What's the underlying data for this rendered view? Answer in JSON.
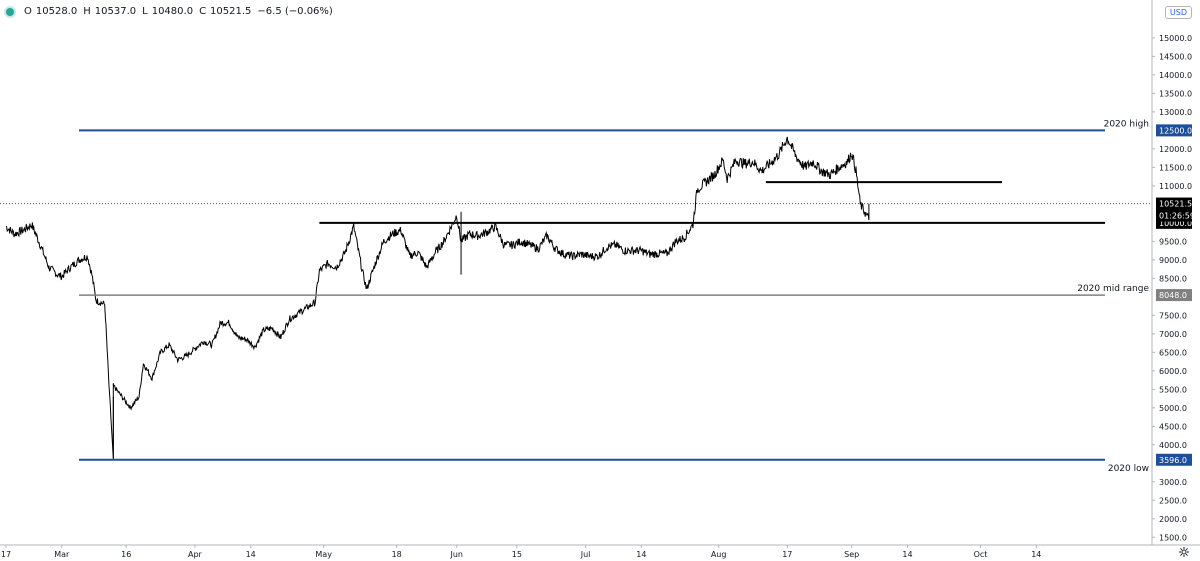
{
  "ohlc": {
    "open_label": "O",
    "open": "10528.0",
    "high_label": "H",
    "high": "10537.0",
    "low_label": "L",
    "low": "10480.0",
    "close_label": "C",
    "close": "10521.5",
    "change": "−6.5 (−0.06%)"
  },
  "currency": "USD",
  "countdown": "01:26:59",
  "colors": {
    "accent": "#2962ff",
    "range_line": "#1e4f9c",
    "mid_line": "#808080",
    "level_line": "#000000",
    "axis_text": "#131722",
    "status_dot": "#26a69a"
  },
  "icons": {
    "settings": "gear-icon",
    "status": "status-dot-icon"
  },
  "chart_data": {
    "type": "line",
    "series_style": "candlestick (rendered as price path)",
    "y_axis": {
      "position": "right",
      "range": [
        1400,
        15700
      ],
      "tick_labels": [
        "15000.0",
        "14500.0",
        "14000.0",
        "13500.0",
        "13000.0",
        "12500.0",
        "12000.0",
        "11500.0",
        "11000.0",
        "10500.0",
        "10000.0",
        "9500.0",
        "9000.0",
        "8500.0",
        "8000.0",
        "7500.0",
        "7000.0",
        "6500.0",
        "6000.0",
        "5500.0",
        "5000.0",
        "4500.0",
        "4000.0",
        "3500.0",
        "3000.0",
        "2500.0",
        "2000.0",
        "1500.0"
      ]
    },
    "x_axis": {
      "range": [
        "2020-02-17",
        "2020-10-30"
      ],
      "tick_labels": [
        {
          "label": "17",
          "date": "2020-02-17"
        },
        {
          "label": "Mar",
          "date": "2020-03-01"
        },
        {
          "label": "16",
          "date": "2020-03-16"
        },
        {
          "label": "Apr",
          "date": "2020-04-01"
        },
        {
          "label": "14",
          "date": "2020-04-14"
        },
        {
          "label": "May",
          "date": "2020-05-01"
        },
        {
          "label": "18",
          "date": "2020-05-18"
        },
        {
          "label": "Jun",
          "date": "2020-06-01"
        },
        {
          "label": "15",
          "date": "2020-06-15"
        },
        {
          "label": "Jul",
          "date": "2020-07-01"
        },
        {
          "label": "14",
          "date": "2020-07-14"
        },
        {
          "label": "Aug",
          "date": "2020-08-01"
        },
        {
          "label": "17",
          "date": "2020-08-17"
        },
        {
          "label": "Sep",
          "date": "2020-09-01"
        },
        {
          "label": "14",
          "date": "2020-09-14"
        },
        {
          "label": "Oct",
          "date": "2020-10-01"
        },
        {
          "label": "14",
          "date": "2020-10-14"
        }
      ]
    },
    "price_path": [
      [
        "2020-02-17",
        9900
      ],
      [
        "2020-02-19",
        9700
      ],
      [
        "2020-02-21",
        9800
      ],
      [
        "2020-02-23",
        9950
      ],
      [
        "2020-02-25",
        9400
      ],
      [
        "2020-02-27",
        8800
      ],
      [
        "2020-02-29",
        8600
      ],
      [
        "2020-03-01",
        8550
      ],
      [
        "2020-03-03",
        8800
      ],
      [
        "2020-03-05",
        9000
      ],
      [
        "2020-03-07",
        9100
      ],
      [
        "2020-03-08",
        8600
      ],
      [
        "2020-03-09",
        7900
      ],
      [
        "2020-03-11",
        7800
      ],
      [
        "2020-03-12",
        5600
      ],
      [
        "2020-03-13",
        3600
      ],
      [
        "2020-03-13",
        5600
      ],
      [
        "2020-03-15",
        5300
      ],
      [
        "2020-03-17",
        5000
      ],
      [
        "2020-03-19",
        5300
      ],
      [
        "2020-03-20",
        6200
      ],
      [
        "2020-03-22",
        5800
      ],
      [
        "2020-03-24",
        6500
      ],
      [
        "2020-03-26",
        6700
      ],
      [
        "2020-03-28",
        6300
      ],
      [
        "2020-03-30",
        6400
      ],
      [
        "2020-04-01",
        6600
      ],
      [
        "2020-04-03",
        6800
      ],
      [
        "2020-04-05",
        6700
      ],
      [
        "2020-04-07",
        7300
      ],
      [
        "2020-04-09",
        7300
      ],
      [
        "2020-04-11",
        6900
      ],
      [
        "2020-04-13",
        6850
      ],
      [
        "2020-04-15",
        6650
      ],
      [
        "2020-04-17",
        7100
      ],
      [
        "2020-04-19",
        7150
      ],
      [
        "2020-04-21",
        6900
      ],
      [
        "2020-04-23",
        7400
      ],
      [
        "2020-04-25",
        7550
      ],
      [
        "2020-04-27",
        7700
      ],
      [
        "2020-04-29",
        7850
      ],
      [
        "2020-04-30",
        8700
      ],
      [
        "2020-05-02",
        8900
      ],
      [
        "2020-05-04",
        8800
      ],
      [
        "2020-05-06",
        9200
      ],
      [
        "2020-05-08",
        9900
      ],
      [
        "2020-05-10",
        8700
      ],
      [
        "2020-05-11",
        8200
      ],
      [
        "2020-05-13",
        8900
      ],
      [
        "2020-05-15",
        9500
      ],
      [
        "2020-05-17",
        9700
      ],
      [
        "2020-05-19",
        9800
      ],
      [
        "2020-05-21",
        9100
      ],
      [
        "2020-05-23",
        9200
      ],
      [
        "2020-05-25",
        8800
      ],
      [
        "2020-05-27",
        9200
      ],
      [
        "2020-05-29",
        9500
      ],
      [
        "2020-06-01",
        10200
      ],
      [
        "2020-06-02",
        9500
      ],
      [
        "2020-06-04",
        9700
      ],
      [
        "2020-06-06",
        9650
      ],
      [
        "2020-06-08",
        9750
      ],
      [
        "2020-06-10",
        9900
      ],
      [
        "2020-06-12",
        9400
      ],
      [
        "2020-06-14",
        9400
      ],
      [
        "2020-06-16",
        9500
      ],
      [
        "2020-06-18",
        9400
      ],
      [
        "2020-06-20",
        9300
      ],
      [
        "2020-06-22",
        9650
      ],
      [
        "2020-06-24",
        9300
      ],
      [
        "2020-06-26",
        9150
      ],
      [
        "2020-06-28",
        9100
      ],
      [
        "2020-06-30",
        9150
      ],
      [
        "2020-07-02",
        9100
      ],
      [
        "2020-07-04",
        9100
      ],
      [
        "2020-07-06",
        9350
      ],
      [
        "2020-07-08",
        9400
      ],
      [
        "2020-07-10",
        9250
      ],
      [
        "2020-07-12",
        9250
      ],
      [
        "2020-07-14",
        9250
      ],
      [
        "2020-07-16",
        9150
      ],
      [
        "2020-07-18",
        9170
      ],
      [
        "2020-07-20",
        9170
      ],
      [
        "2020-07-22",
        9500
      ],
      [
        "2020-07-24",
        9600
      ],
      [
        "2020-07-26",
        9950
      ],
      [
        "2020-07-27",
        10900
      ],
      [
        "2020-07-29",
        11100
      ],
      [
        "2020-07-31",
        11300
      ],
      [
        "2020-08-02",
        11700
      ],
      [
        "2020-08-03",
        11200
      ],
      [
        "2020-08-05",
        11700
      ],
      [
        "2020-08-07",
        11600
      ],
      [
        "2020-08-09",
        11650
      ],
      [
        "2020-08-11",
        11400
      ],
      [
        "2020-08-13",
        11600
      ],
      [
        "2020-08-15",
        11850
      ],
      [
        "2020-08-17",
        12300
      ],
      [
        "2020-08-19",
        11800
      ],
      [
        "2020-08-21",
        11500
      ],
      [
        "2020-08-23",
        11650
      ],
      [
        "2020-08-25",
        11400
      ],
      [
        "2020-08-27",
        11300
      ],
      [
        "2020-08-29",
        11500
      ],
      [
        "2020-08-31",
        11650
      ],
      [
        "2020-09-01",
        11900
      ],
      [
        "2020-09-02",
        11400
      ],
      [
        "2020-09-03",
        10500
      ],
      [
        "2020-09-04",
        10300
      ],
      [
        "2020-09-05",
        10100
      ],
      [
        "2020-09-05",
        10521.5
      ]
    ],
    "lows_annotated": [
      [
        "2020-03-13",
        3596
      ],
      [
        "2020-06-02",
        8600
      ]
    ],
    "horizontal_levels": [
      {
        "label": "2020 high",
        "price": 12500,
        "price_label": "12500.0",
        "from": "2020-03-05",
        "to": "2020-10-30",
        "style": "range"
      },
      {
        "label": "2020 mid range",
        "price": 8048,
        "price_label": "8048.0",
        "from": "2020-03-05",
        "to": "2020-10-30",
        "style": "mid"
      },
      {
        "label": "2020 low",
        "price": 3596,
        "price_label": "3596.0",
        "from": "2020-03-05",
        "to": "2020-10-30",
        "style": "range"
      },
      {
        "label": "",
        "price": 10000,
        "price_label": "10000.0",
        "from": "2020-04-30",
        "to": "2020-10-30",
        "style": "level"
      },
      {
        "label": "",
        "price": 11100,
        "price_label": "",
        "from": "2020-08-12",
        "to": "2020-10-06",
        "style": "level"
      }
    ],
    "last_price": {
      "price": 10521.5,
      "price_label": "10521.5"
    },
    "grid": false,
    "legend": "none"
  }
}
